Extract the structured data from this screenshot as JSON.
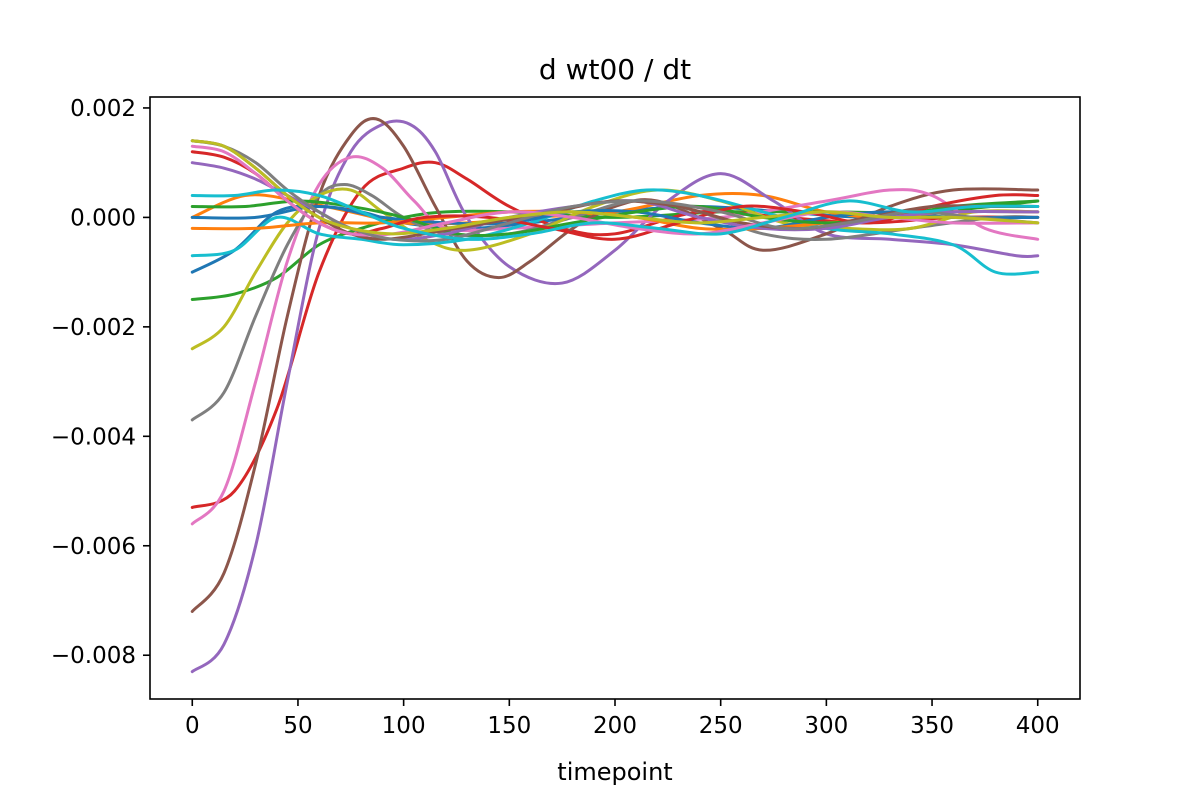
{
  "chart_data": {
    "type": "line",
    "title": "d wt00 / dt",
    "xlabel": "timepoint",
    "ylabel": "",
    "xlim": [
      -20,
      420
    ],
    "ylim": [
      -0.0088,
      0.0022
    ],
    "xticks": [
      0,
      50,
      100,
      150,
      200,
      250,
      300,
      350,
      400
    ],
    "xtick_labels": [
      "0",
      "50",
      "100",
      "150",
      "200",
      "250",
      "300",
      "350",
      "400"
    ],
    "yticks": [
      -0.008,
      -0.006,
      -0.004,
      -0.002,
      0.0,
      0.002
    ],
    "ytick_labels": [
      "−0.008",
      "−0.006",
      "−0.004",
      "−0.002",
      "0.000",
      "0.002"
    ],
    "grid": false,
    "legend": "none",
    "series": [
      {
        "color": "#1f77b4",
        "x": [
          0,
          20,
          40,
          60,
          80,
          100,
          130,
          160,
          200,
          240,
          280,
          320,
          360,
          400
        ],
        "y": [
          -0.001,
          -0.0006,
          0.0001,
          0.0002,
          0.0001,
          -0.0001,
          -0.0002,
          -0.0001,
          0.0001,
          0.0002,
          0.0001,
          0.0,
          0.0001,
          0.0001
        ]
      },
      {
        "color": "#ff7f0e",
        "x": [
          0,
          25,
          50,
          75,
          100,
          130,
          160,
          200,
          240,
          270,
          300,
          330,
          360,
          400
        ],
        "y": [
          0.0,
          0.0004,
          0.0003,
          0.0001,
          -0.0001,
          -0.0001,
          0.0,
          0.0001,
          0.0004,
          0.0004,
          0.0001,
          0.0,
          0.0002,
          0.0002
        ]
      },
      {
        "color": "#2ca02c",
        "x": [
          0,
          20,
          40,
          60,
          80,
          100,
          120,
          150,
          200,
          250,
          300,
          350,
          400
        ],
        "y": [
          -0.0015,
          -0.0014,
          -0.0011,
          -0.0005,
          -0.0002,
          0.0,
          0.0001,
          0.0001,
          0.0,
          0.0001,
          0.0001,
          0.0001,
          0.0003
        ]
      },
      {
        "color": "#d62728",
        "x": [
          0,
          20,
          40,
          60,
          80,
          100,
          115,
          130,
          150,
          175,
          200,
          240,
          280,
          320,
          360,
          400
        ],
        "y": [
          -0.0053,
          -0.005,
          -0.0035,
          -0.001,
          0.0005,
          0.0009,
          0.001,
          0.0007,
          0.0002,
          -0.0002,
          -0.0003,
          0.0001,
          0.0,
          -0.0001,
          0.0,
          0.0
        ]
      },
      {
        "color": "#9467bd",
        "x": [
          0,
          15,
          30,
          45,
          60,
          75,
          90,
          103,
          115,
          130,
          150,
          175,
          200,
          225,
          250,
          275,
          300,
          330,
          360,
          390,
          400
        ],
        "y": [
          -0.0083,
          -0.0078,
          -0.006,
          -0.003,
          -0.0002,
          0.0012,
          0.0017,
          0.0017,
          0.0012,
          0.0,
          -0.0009,
          -0.0012,
          -0.0006,
          0.0003,
          0.0008,
          0.0003,
          -0.0003,
          -0.0004,
          -0.0005,
          -0.0007,
          -0.0007
        ]
      },
      {
        "color": "#8c564b",
        "x": [
          0,
          15,
          30,
          45,
          60,
          75,
          87,
          100,
          115,
          130,
          145,
          160,
          180,
          200,
          220,
          250,
          270,
          300,
          330,
          360,
          400
        ],
        "y": [
          -0.0072,
          -0.0065,
          -0.0045,
          -0.0018,
          0.0004,
          0.0015,
          0.0018,
          0.0013,
          0.0002,
          -0.0008,
          -0.0011,
          -0.0008,
          -0.0002,
          0.0002,
          0.0003,
          -0.0002,
          -0.0006,
          -0.0003,
          0.0002,
          0.0005,
          0.0005
        ]
      },
      {
        "color": "#e377c2",
        "x": [
          0,
          15,
          30,
          45,
          60,
          75,
          90,
          105,
          120,
          150,
          200,
          250,
          300,
          330,
          350,
          375,
          400
        ],
        "y": [
          -0.0056,
          -0.005,
          -0.003,
          -0.0008,
          0.0006,
          0.0011,
          0.0009,
          0.0003,
          -0.0002,
          -0.0002,
          -0.0001,
          0.0,
          0.0003,
          0.0005,
          0.0004,
          -0.0002,
          -0.0004
        ]
      },
      {
        "color": "#7f7f7f",
        "x": [
          0,
          15,
          30,
          45,
          60,
          72,
          85,
          100,
          120,
          150,
          180,
          210,
          240,
          270,
          300,
          340,
          380,
          400
        ],
        "y": [
          -0.0037,
          -0.0032,
          -0.0018,
          -0.0005,
          0.0004,
          0.0006,
          0.0004,
          0.0,
          -0.0003,
          -0.0003,
          0.0,
          0.0003,
          0.0001,
          -0.0003,
          -0.0004,
          -0.0002,
          0.0,
          0.0
        ]
      },
      {
        "color": "#bcbd22",
        "x": [
          0,
          15,
          30,
          45,
          60,
          75,
          90,
          110,
          130,
          160,
          190,
          220,
          250,
          280,
          310,
          340,
          370,
          400
        ],
        "y": [
          -0.0024,
          -0.002,
          -0.001,
          -0.0001,
          0.0004,
          0.0005,
          0.0001,
          -0.0004,
          -0.0006,
          -0.0003,
          0.0002,
          0.0005,
          0.0003,
          -0.0001,
          -0.0002,
          -0.0002,
          0.0001,
          0.0001
        ]
      },
      {
        "color": "#17becf",
        "x": [
          0,
          20,
          40,
          60,
          80,
          100,
          130,
          160,
          190,
          215,
          240,
          270,
          300,
          330,
          360,
          380,
          400
        ],
        "y": [
          -0.0007,
          -0.0006,
          0.0,
          -0.0003,
          -0.0004,
          -0.0005,
          -0.0004,
          -0.0001,
          0.0003,
          0.0005,
          0.0004,
          0.0001,
          -0.0002,
          -0.0003,
          -0.0005,
          -0.001,
          -0.001
        ]
      },
      {
        "color": "#1f77b4",
        "x": [
          0,
          30,
          60,
          90,
          120,
          150,
          180,
          210,
          240,
          270,
          300,
          330,
          360,
          400
        ],
        "y": [
          0.0,
          0.0,
          0.0002,
          0.0,
          -0.0001,
          -0.0001,
          0.0001,
          0.0001,
          -0.0001,
          -0.0002,
          0.0,
          0.0001,
          0.0,
          0.0
        ]
      },
      {
        "color": "#ff7f0e",
        "x": [
          0,
          30,
          60,
          90,
          120,
          150,
          180,
          210,
          240,
          270,
          300,
          330,
          360,
          400
        ],
        "y": [
          -0.0002,
          -0.0002,
          -0.0001,
          -0.0001,
          0.0,
          0.0001,
          0.0001,
          0.0,
          -0.0002,
          -0.0002,
          -0.0001,
          0.0,
          0.0001,
          0.0001
        ]
      },
      {
        "color": "#2ca02c",
        "x": [
          0,
          25,
          50,
          75,
          100,
          125,
          150,
          180,
          210,
          240,
          270,
          300,
          330,
          360,
          400
        ],
        "y": [
          0.0002,
          0.0002,
          0.0003,
          0.0002,
          0.0,
          -0.0003,
          -0.0003,
          -0.0001,
          0.0001,
          0.0002,
          0.0,
          -0.0001,
          0.0,
          0.0002,
          0.0003
        ]
      },
      {
        "color": "#d62728",
        "x": [
          0,
          15,
          30,
          45,
          60,
          75,
          90,
          110,
          140,
          170,
          200,
          230,
          260,
          290,
          320,
          350,
          380,
          400
        ],
        "y": [
          0.0012,
          0.0011,
          0.0008,
          0.0003,
          -0.0001,
          -0.0003,
          -0.0002,
          0.0,
          0.0,
          -0.0002,
          -0.0004,
          -0.0001,
          0.0002,
          0.0001,
          -0.0001,
          0.0002,
          0.0004,
          0.0004
        ]
      },
      {
        "color": "#9467bd",
        "x": [
          0,
          15,
          30,
          45,
          60,
          75,
          95,
          120,
          150,
          180,
          210,
          240,
          270,
          300,
          330,
          360,
          400
        ],
        "y": [
          0.001,
          0.0009,
          0.0007,
          0.0004,
          0.0001,
          -0.0002,
          -0.0004,
          -0.0003,
          0.0,
          0.0002,
          0.0003,
          0.0,
          -0.0002,
          -0.0002,
          0.0,
          0.0001,
          0.0001
        ]
      },
      {
        "color": "#8c564b",
        "x": [
          0,
          15,
          30,
          45,
          60,
          75,
          90,
          110,
          140,
          170,
          200,
          230,
          260,
          290,
          320,
          350,
          380,
          400
        ],
        "y": [
          0.0014,
          0.0013,
          0.0009,
          0.0004,
          0.0,
          -0.0003,
          -0.0004,
          -0.0003,
          -0.0001,
          0.0001,
          0.0003,
          0.0002,
          -0.0001,
          -0.0002,
          0.0,
          0.0002,
          0.0002,
          0.0002
        ]
      },
      {
        "color": "#e377c2",
        "x": [
          0,
          15,
          30,
          45,
          60,
          75,
          95,
          120,
          150,
          180,
          210,
          240,
          270,
          300,
          330,
          360,
          400
        ],
        "y": [
          0.0013,
          0.0012,
          0.0008,
          0.0003,
          -0.0001,
          -0.0003,
          -0.0003,
          -0.0001,
          0.0001,
          0.0,
          -0.0002,
          -0.0003,
          -0.0001,
          0.0001,
          0.0,
          -0.0001,
          -0.0001
        ]
      },
      {
        "color": "#7f7f7f",
        "x": [
          0,
          15,
          30,
          45,
          60,
          75,
          95,
          120,
          150,
          180,
          215,
          250,
          280,
          310,
          340,
          370,
          400
        ],
        "y": [
          0.0014,
          0.0013,
          0.001,
          0.0005,
          0.0001,
          -0.0002,
          -0.0004,
          -0.0004,
          -0.0001,
          0.0002,
          0.0003,
          0.0001,
          -0.0002,
          -0.0001,
          0.0001,
          0.0,
          -0.0001
        ]
      },
      {
        "color": "#bcbd22",
        "x": [
          0,
          15,
          30,
          45,
          60,
          75,
          95,
          120,
          150,
          180,
          210,
          240,
          270,
          300,
          330,
          360,
          400
        ],
        "y": [
          0.0014,
          0.0013,
          0.0009,
          0.0004,
          0.0,
          -0.0002,
          -0.0003,
          -0.0002,
          0.0,
          0.0001,
          0.0,
          -0.0001,
          0.0,
          0.0001,
          0.0,
          0.0,
          -0.0001
        ]
      },
      {
        "color": "#17becf",
        "x": [
          0,
          20,
          40,
          60,
          80,
          100,
          130,
          160,
          190,
          220,
          250,
          280,
          310,
          340,
          370,
          400
        ],
        "y": [
          0.0004,
          0.0004,
          0.0005,
          0.0004,
          0.0001,
          -0.0002,
          -0.0004,
          -0.0003,
          -0.0001,
          -0.0002,
          -0.0003,
          0.0,
          0.0003,
          0.0001,
          0.0002,
          0.0002
        ]
      }
    ]
  }
}
